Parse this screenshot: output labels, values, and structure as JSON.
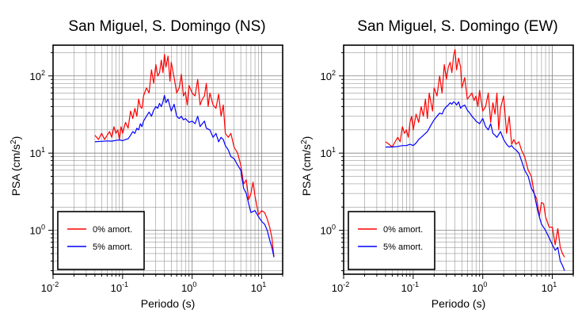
{
  "charts": [
    {
      "title": "San Miguel, S. Domingo (NS)",
      "xlabel": "Periodo (s)",
      "ylabel_main": "PSA (cm/s",
      "ylabel_sup": "2",
      "ylabel_end": ")",
      "legend": [
        "0% amort.",
        "5% amort."
      ]
    },
    {
      "title": "San Miguel, S. Domingo (EW)",
      "xlabel": "Periodo (s)",
      "ylabel_main": "PSA (cm/s",
      "ylabel_sup": "2",
      "ylabel_end": ")",
      "legend": [
        "0% amort.",
        "5% amort."
      ]
    }
  ],
  "ticks": {
    "x": [
      {
        "base": "10",
        "exp": "-2"
      },
      {
        "base": "10",
        "exp": "-1"
      },
      {
        "base": "10",
        "exp": "0"
      },
      {
        "base": "10",
        "exp": "1"
      }
    ],
    "y": [
      {
        "base": "10",
        "exp": "0"
      },
      {
        "base": "10",
        "exp": "1"
      },
      {
        "base": "10",
        "exp": "2"
      }
    ]
  },
  "colors": {
    "damping_0": "#ff0000",
    "damping_5": "#0000ff",
    "grid": "#808080"
  },
  "chart_data": [
    {
      "type": "line",
      "title": "San Miguel, S. Domingo (NS)",
      "xlabel": "Periodo (s)",
      "ylabel": "PSA (cm/s2)",
      "xscale": "log",
      "yscale": "log",
      "xlim": [
        0.01,
        20
      ],
      "ylim": [
        0.27,
        250
      ],
      "grid": true,
      "legend_position": "bottom-left",
      "series": [
        {
          "name": "0% amort.",
          "color": "#ff0000",
          "x": [
            0.04,
            0.045,
            0.05,
            0.055,
            0.06,
            0.065,
            0.07,
            0.075,
            0.08,
            0.085,
            0.09,
            0.095,
            0.1,
            0.11,
            0.12,
            0.13,
            0.14,
            0.15,
            0.16,
            0.17,
            0.18,
            0.19,
            0.2,
            0.22,
            0.24,
            0.26,
            0.28,
            0.3,
            0.32,
            0.34,
            0.36,
            0.38,
            0.4,
            0.42,
            0.45,
            0.48,
            0.5,
            0.55,
            0.6,
            0.65,
            0.7,
            0.75,
            0.8,
            0.85,
            0.9,
            1.0,
            1.1,
            1.2,
            1.3,
            1.4,
            1.5,
            1.6,
            1.7,
            1.8,
            2.0,
            2.2,
            2.4,
            2.6,
            2.8,
            3.0,
            3.3,
            3.6,
            4.0,
            4.5,
            5.0,
            5.5,
            6.0,
            6.5,
            7.0,
            7.5,
            8.0,
            9.0,
            10,
            11,
            12,
            13,
            14,
            15
          ],
          "y": [
            17,
            15,
            18,
            15,
            17,
            19,
            16,
            22,
            18,
            20,
            15,
            22,
            18,
            25,
            21,
            35,
            28,
            38,
            30,
            50,
            40,
            38,
            55,
            70,
            60,
            120,
            80,
            140,
            100,
            110,
            160,
            110,
            190,
            130,
            180,
            85,
            150,
            95,
            60,
            70,
            105,
            55,
            62,
            42,
            75,
            60,
            55,
            90,
            42,
            50,
            55,
            80,
            40,
            60,
            42,
            38,
            58,
            30,
            42,
            18,
            16,
            18,
            12,
            10,
            7,
            4,
            4.5,
            2.5,
            3,
            4.2,
            2.8,
            1.6,
            1.8,
            1.7,
            1.4,
            1.1,
            0.8,
            0.45
          ]
        },
        {
          "name": "5% amort.",
          "color": "#0000ff",
          "x": [
            0.04,
            0.05,
            0.06,
            0.07,
            0.08,
            0.09,
            0.1,
            0.11,
            0.12,
            0.13,
            0.14,
            0.15,
            0.16,
            0.17,
            0.18,
            0.19,
            0.2,
            0.22,
            0.24,
            0.26,
            0.28,
            0.3,
            0.32,
            0.34,
            0.36,
            0.38,
            0.4,
            0.42,
            0.45,
            0.48,
            0.5,
            0.55,
            0.6,
            0.65,
            0.7,
            0.75,
            0.8,
            0.9,
            1.0,
            1.1,
            1.2,
            1.3,
            1.4,
            1.5,
            1.6,
            1.8,
            2.0,
            2.2,
            2.4,
            2.6,
            2.8,
            3.0,
            3.3,
            3.6,
            4.0,
            4.5,
            5.0,
            5.5,
            6.0,
            6.5,
            7.0,
            8.0,
            9.0,
            10,
            11,
            12,
            13,
            14,
            15
          ],
          "y": [
            14,
            14.2,
            14.4,
            14.3,
            14.6,
            14.8,
            14.5,
            15,
            15.3,
            17,
            19,
            18,
            21,
            20,
            24,
            22,
            26,
            30,
            34,
            30,
            36,
            40,
            38,
            44,
            40,
            46,
            56,
            45,
            50,
            40,
            35,
            43,
            30,
            28,
            30,
            27,
            28,
            25,
            26,
            24,
            30,
            22,
            24,
            26,
            21,
            20,
            16,
            18,
            14,
            16,
            15,
            12.5,
            11,
            9,
            8.5,
            7,
            6,
            3.5,
            3,
            2.2,
            1.7,
            1.8,
            1.5,
            1.3,
            1.2,
            1.0,
            0.75,
            0.6,
            0.45
          ]
        }
      ]
    },
    {
      "type": "line",
      "title": "San Miguel, S. Domingo (EW)",
      "xlabel": "Periodo (s)",
      "ylabel": "PSA (cm/s2)",
      "xscale": "log",
      "yscale": "log",
      "xlim": [
        0.01,
        20
      ],
      "ylim": [
        0.27,
        250
      ],
      "grid": true,
      "legend_position": "bottom-left",
      "series": [
        {
          "name": "0% amort.",
          "color": "#ff0000",
          "x": [
            0.04,
            0.045,
            0.05,
            0.055,
            0.06,
            0.065,
            0.07,
            0.075,
            0.08,
            0.085,
            0.09,
            0.095,
            0.1,
            0.11,
            0.12,
            0.13,
            0.14,
            0.15,
            0.16,
            0.17,
            0.18,
            0.19,
            0.2,
            0.22,
            0.24,
            0.26,
            0.28,
            0.3,
            0.32,
            0.34,
            0.36,
            0.38,
            0.4,
            0.42,
            0.45,
            0.48,
            0.5,
            0.55,
            0.6,
            0.65,
            0.7,
            0.75,
            0.8,
            0.85,
            0.9,
            1.0,
            1.1,
            1.2,
            1.3,
            1.4,
            1.5,
            1.6,
            1.7,
            1.8,
            2.0,
            2.2,
            2.4,
            2.6,
            2.8,
            3.0,
            3.3,
            3.6,
            4.0,
            4.5,
            5.0,
            5.5,
            6.0,
            6.5,
            7.0,
            7.5,
            8.0,
            9.0,
            10,
            11,
            12,
            13,
            14,
            15
          ],
          "y": [
            14,
            13,
            12,
            14,
            16,
            14,
            22,
            18,
            20,
            16,
            25,
            30,
            20,
            32,
            25,
            40,
            30,
            50,
            28,
            60,
            45,
            35,
            70,
            55,
            100,
            60,
            140,
            90,
            130,
            150,
            110,
            180,
            220,
            120,
            170,
            130,
            70,
            95,
            50,
            55,
            60,
            48,
            55,
            40,
            65,
            35,
            40,
            60,
            25,
            45,
            32,
            60,
            20,
            38,
            55,
            18,
            30,
            13,
            15,
            13,
            14,
            11,
            9,
            6,
            5,
            3,
            2.5,
            1.5,
            2.3,
            2.2,
            1.5,
            1.1,
            1.1,
            0.65,
            1.05,
            0.6,
            0.5,
            0.45
          ]
        },
        {
          "name": "5% amort.",
          "color": "#0000ff",
          "x": [
            0.04,
            0.05,
            0.06,
            0.07,
            0.08,
            0.09,
            0.1,
            0.11,
            0.12,
            0.13,
            0.14,
            0.15,
            0.16,
            0.17,
            0.18,
            0.19,
            0.2,
            0.22,
            0.24,
            0.26,
            0.28,
            0.3,
            0.32,
            0.34,
            0.36,
            0.38,
            0.4,
            0.42,
            0.45,
            0.48,
            0.5,
            0.55,
            0.6,
            0.65,
            0.7,
            0.75,
            0.8,
            0.9,
            1.0,
            1.1,
            1.2,
            1.3,
            1.4,
            1.5,
            1.6,
            1.8,
            2.0,
            2.2,
            2.4,
            2.6,
            2.8,
            3.0,
            3.3,
            3.6,
            4.0,
            4.5,
            5.0,
            5.5,
            6.0,
            6.5,
            7.0,
            8.0,
            9.0,
            10,
            11,
            12,
            13,
            14,
            15
          ],
          "y": [
            12,
            12,
            12.2,
            12.5,
            12.5,
            13,
            12.5,
            13.5,
            15,
            16,
            17,
            18,
            19,
            21,
            23,
            25,
            27,
            30,
            33,
            32,
            37,
            40,
            42,
            45,
            43,
            46,
            45,
            42,
            46,
            38,
            40,
            42,
            36,
            33,
            30,
            28,
            26,
            24,
            28,
            22,
            20,
            24,
            18,
            17,
            16,
            19,
            15,
            13,
            12,
            12.5,
            11.5,
            11,
            10,
            8,
            6,
            5,
            3.5,
            3,
            2,
            1.5,
            1.2,
            1.0,
            0.8,
            0.65,
            0.55,
            0.6,
            0.4,
            0.35,
            0.3
          ]
        }
      ]
    }
  ]
}
